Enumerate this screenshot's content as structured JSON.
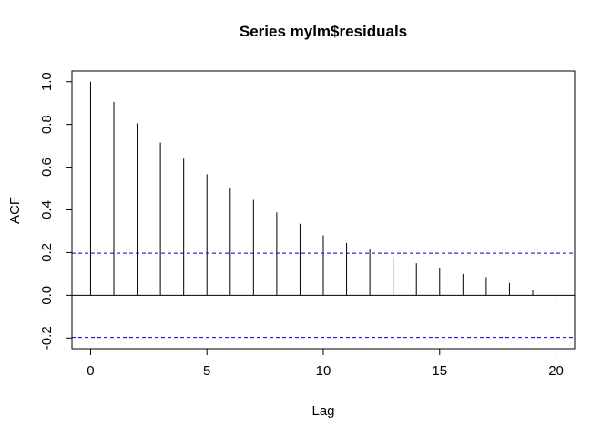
{
  "chart_data": {
    "type": "bar",
    "title": "Series  mylm$residuals",
    "xlabel": "Lag",
    "ylabel": "ACF",
    "xlim": [
      -0.8,
      20.8
    ],
    "ylim": [
      -0.25,
      1.05
    ],
    "x_ticks": [
      0,
      5,
      10,
      15,
      20
    ],
    "x_tick_labels": [
      "0",
      "5",
      "10",
      "15",
      "20"
    ],
    "y_ticks": [
      -0.2,
      0.0,
      0.2,
      0.4,
      0.6,
      0.8,
      1.0
    ],
    "y_tick_labels": [
      "-0.2",
      "0.0",
      "0.2",
      "0.4",
      "0.6",
      "0.8",
      "1.0"
    ],
    "x": [
      0,
      1,
      2,
      3,
      4,
      5,
      6,
      7,
      8,
      9,
      10,
      11,
      12,
      13,
      14,
      15,
      16,
      17,
      18,
      19,
      20
    ],
    "values": [
      1.0,
      0.905,
      0.805,
      0.715,
      0.64,
      0.567,
      0.505,
      0.447,
      0.388,
      0.335,
      0.28,
      0.245,
      0.215,
      0.18,
      0.15,
      0.13,
      0.1,
      0.085,
      0.058,
      0.025,
      -0.015
    ],
    "confidence_bound": 0.197,
    "zero_line": 0,
    "grid": false,
    "colors": {
      "bars": "#000000",
      "confidence_lines": "#0000cc",
      "axes": "#000000"
    }
  }
}
